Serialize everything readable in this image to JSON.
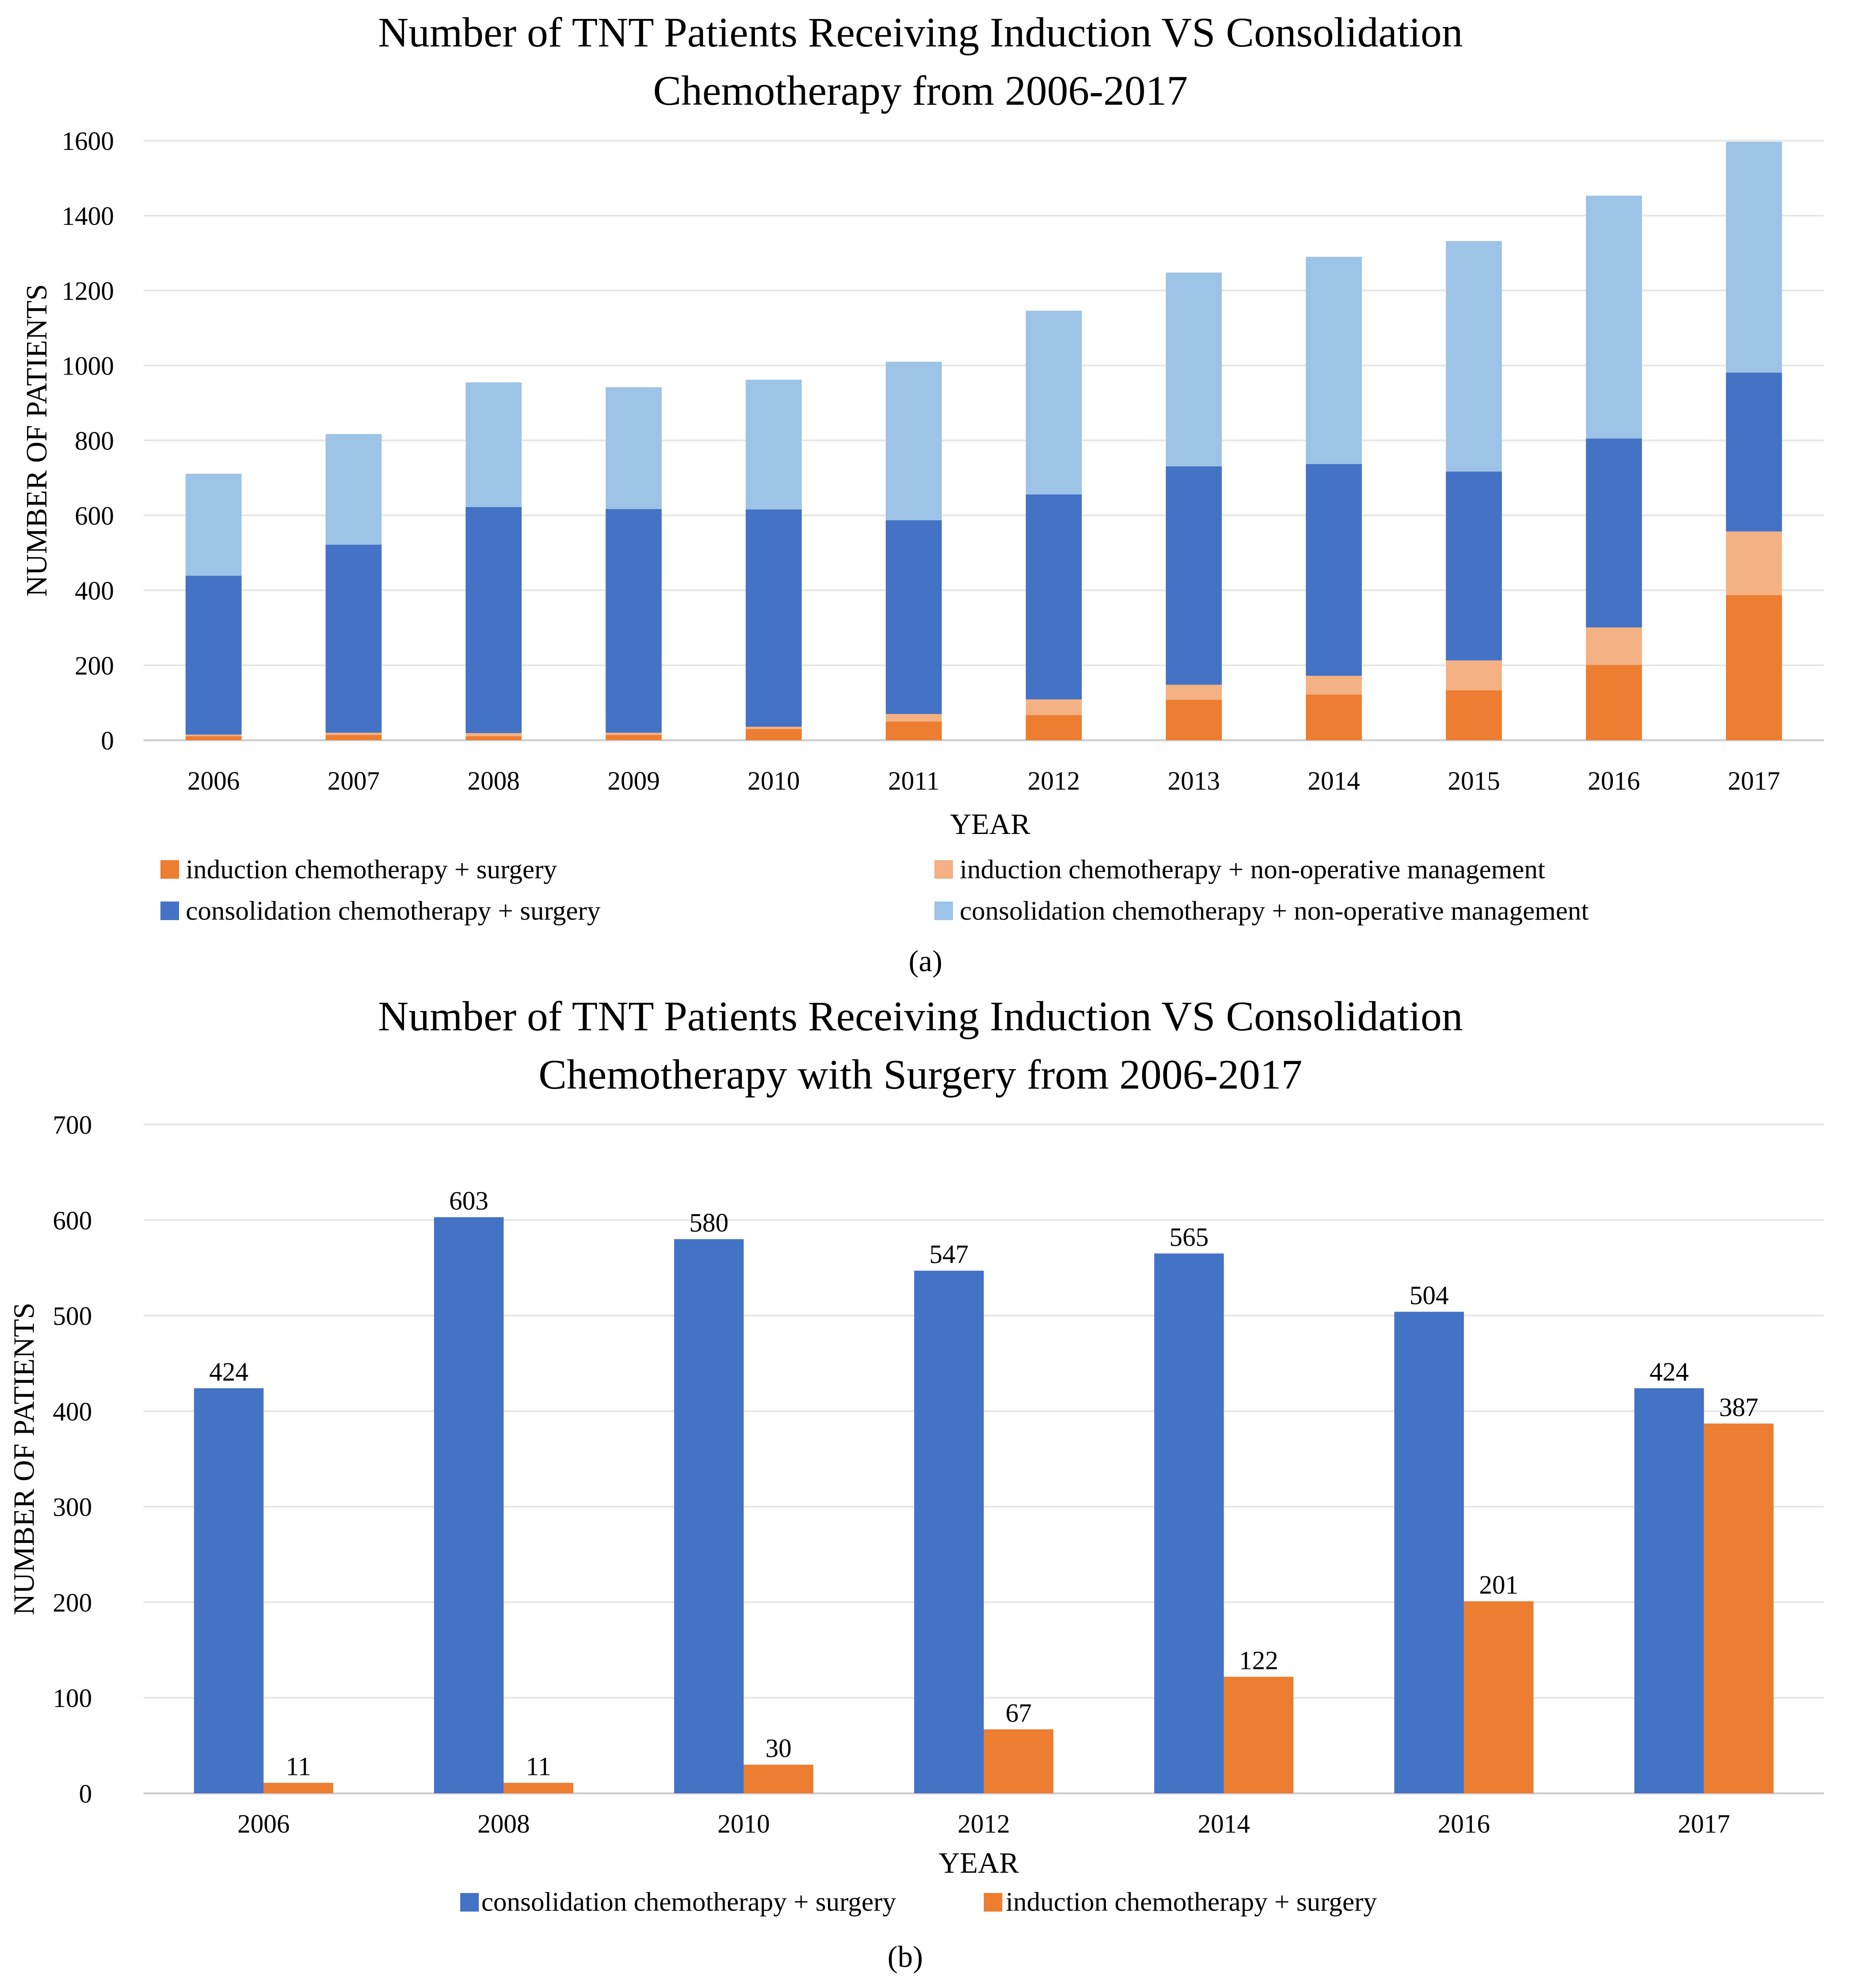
{
  "chart_data": [
    {
      "type": "bar",
      "stacked": true,
      "title_lines": [
        "Number of TNT Patients Receiving Induction VS Consolidation",
        "Chemotherapy from 2006-2017"
      ],
      "xlabel": "YEAR",
      "ylabel": "NUMBER OF PATIENTS",
      "ylim": [
        0,
        1600
      ],
      "yticks": [
        0,
        200,
        400,
        600,
        800,
        1000,
        1200,
        1400,
        1600
      ],
      "grid": true,
      "legend_position": "bottom",
      "panel_label": "(a)",
      "categories": [
        "2006",
        "2007",
        "2008",
        "2009",
        "2010",
        "2011",
        "2012",
        "2013",
        "2014",
        "2015",
        "2016",
        "2017"
      ],
      "series": [
        {
          "name": "induction chemotherapy + surgery",
          "color": "#ED7D31",
          "values": [
            11,
            14,
            11,
            14,
            30,
            50,
            67,
            108,
            122,
            133,
            201,
            387
          ]
        },
        {
          "name": "induction chemotherapy + non-operative management",
          "color": "#F4B183",
          "values": [
            4,
            6,
            8,
            6,
            6,
            20,
            42,
            40,
            50,
            80,
            100,
            170
          ]
        },
        {
          "name": "consolidation chemotherapy + surgery",
          "color": "#4472C4",
          "values": [
            424,
            502,
            603,
            597,
            580,
            517,
            547,
            583,
            565,
            504,
            504,
            424
          ]
        },
        {
          "name": "consolidation chemotherapy + non-operative management",
          "color": "#9DC3E6",
          "values": [
            272,
            295,
            333,
            325,
            346,
            423,
            490,
            517,
            553,
            615,
            648,
            616
          ]
        }
      ]
    },
    {
      "type": "bar",
      "stacked": false,
      "title_lines": [
        "Number of TNT Patients Receiving Induction VS Consolidation",
        "Chemotherapy with Surgery from 2006-2017"
      ],
      "xlabel": "YEAR",
      "ylabel": "NUMBER OF PATIENTS",
      "ylim": [
        0,
        700
      ],
      "yticks": [
        0,
        100,
        200,
        300,
        400,
        500,
        600,
        700
      ],
      "grid": true,
      "legend_position": "bottom",
      "panel_label": "(b)",
      "categories": [
        "2006",
        "2008",
        "2010",
        "2012",
        "2014",
        "2016",
        "2017"
      ],
      "series": [
        {
          "name": "consolidation chemotherapy + surgery",
          "color": "#4472C4",
          "values": [
            424,
            603,
            580,
            547,
            565,
            504,
            424
          ]
        },
        {
          "name": "induction chemotherapy + surgery",
          "color": "#ED7D31",
          "values": [
            11,
            11,
            30,
            67,
            122,
            201,
            387
          ]
        }
      ]
    }
  ]
}
